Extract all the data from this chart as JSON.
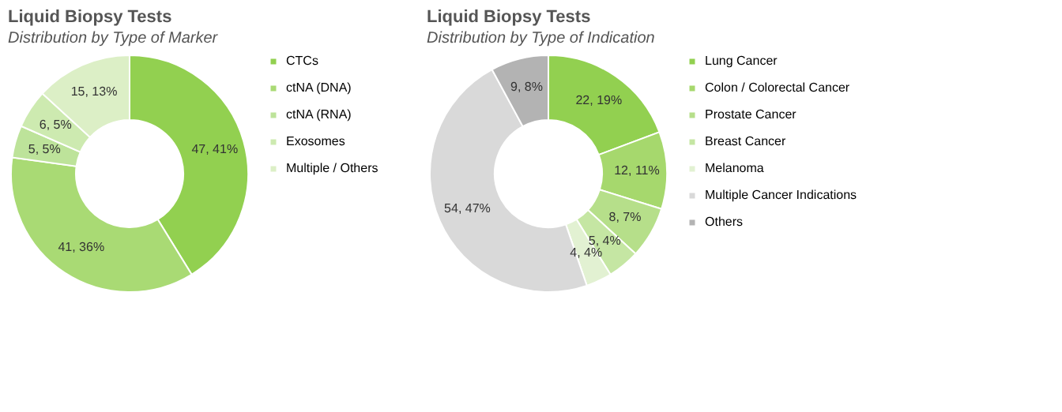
{
  "chart_data": [
    {
      "type": "donut",
      "title": "Liquid Biopsy Tests",
      "subtitle": "Distribution by Type of Marker",
      "legend": "right",
      "categories": [
        "CTCs",
        "ctNA (DNA)",
        "ctNA (RNA)",
        "Exosomes",
        "Multiple / Others"
      ],
      "values": [
        47,
        41,
        5,
        6,
        15
      ],
      "value_labels": [
        "47, 41%",
        "41, 36%",
        "5, 5%",
        "6, 5%",
        "15, 13%"
      ],
      "colors": [
        "#92d050",
        "#a9da74",
        "#bde39a",
        "#cdeab0",
        "#dcefc6"
      ]
    },
    {
      "type": "donut",
      "title": "Liquid Biopsy Tests",
      "subtitle": "Distribution by Type of Indication",
      "legend": "right",
      "categories": [
        "Lung Cancer",
        "Colon / Colorectal Cancer",
        "Prostate Cancer",
        "Breast Cancer",
        "Melanoma",
        "Multiple Cancer Indications",
        "Others"
      ],
      "values": [
        22,
        12,
        8,
        5,
        4,
        54,
        9
      ],
      "value_labels": [
        "22, 19%",
        "12, 11%",
        "8, 7%",
        "5, 4%",
        "4, 4%",
        "54, 47%",
        "9, 8%"
      ],
      "colors": [
        "#92d050",
        "#a6d86d",
        "#b6df8a",
        "#c5e6a3",
        "#e2f1d2",
        "#d9d9d9",
        "#b3b3b3"
      ]
    }
  ]
}
